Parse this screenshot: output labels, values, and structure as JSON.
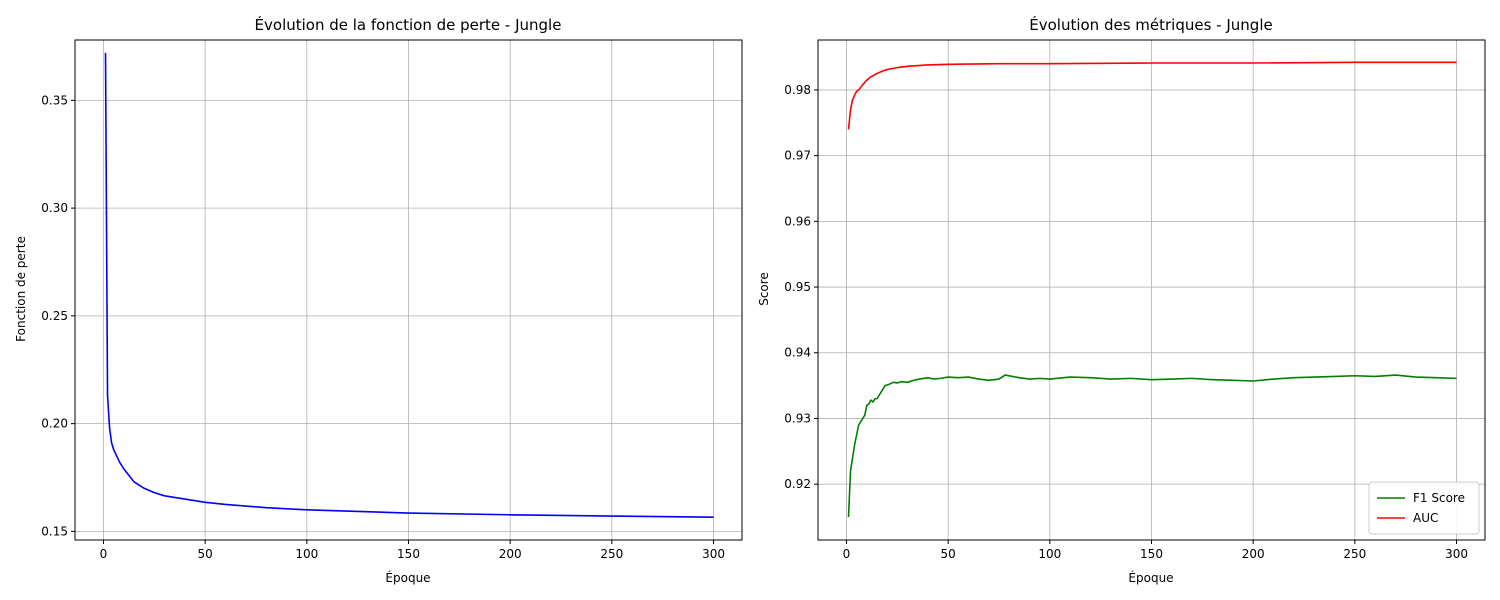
{
  "chart_data": [
    {
      "type": "line",
      "title": "Évolution de la fonction de perte - Jungle",
      "xlabel": "Époque",
      "ylabel": "Fonction de perte",
      "xlim": [
        -14,
        314
      ],
      "ylim": [
        0.146,
        0.378
      ],
      "xticks": [
        0,
        50,
        100,
        150,
        200,
        250,
        300
      ],
      "yticks": [
        0.15,
        0.2,
        0.25,
        0.3,
        0.35
      ],
      "grid": true,
      "legend": "none",
      "series": [
        {
          "name": "",
          "color": "#0000ff",
          "x": [
            1,
            2,
            3,
            4,
            5,
            6,
            8,
            10,
            15,
            20,
            25,
            30,
            40,
            50,
            60,
            80,
            100,
            150,
            200,
            250,
            300
          ],
          "y": [
            0.372,
            0.213,
            0.198,
            0.191,
            0.188,
            0.186,
            0.182,
            0.179,
            0.173,
            0.17,
            0.168,
            0.1665,
            0.165,
            0.1635,
            0.1625,
            0.161,
            0.16,
            0.1585,
            0.1577,
            0.1571,
            0.1566
          ]
        }
      ]
    },
    {
      "type": "line",
      "title": "Évolution des métriques - Jungle",
      "xlabel": "Époque",
      "ylabel": "Score",
      "xlim": [
        -14,
        314
      ],
      "ylim": [
        0.9115,
        0.9876
      ],
      "xticks": [
        0,
        50,
        100,
        150,
        200,
        250,
        300
      ],
      "yticks": [
        0.92,
        0.93,
        0.94,
        0.95,
        0.96,
        0.97,
        0.98
      ],
      "grid": true,
      "legend": "bottom-right",
      "series": [
        {
          "name": "F1 Score",
          "color": "#008000",
          "x": [
            1,
            2,
            3,
            4,
            5,
            6,
            7,
            8,
            9,
            10,
            11,
            12,
            13,
            14,
            15,
            17,
            19,
            21,
            23,
            25,
            27,
            30,
            33,
            36,
            40,
            43,
            46,
            50,
            55,
            60,
            65,
            70,
            75,
            78,
            85,
            90,
            95,
            100,
            110,
            120,
            130,
            140,
            150,
            160,
            170,
            180,
            190,
            200,
            210,
            220,
            230,
            240,
            250,
            260,
            270,
            280,
            290,
            300
          ],
          "y": [
            0.915,
            0.922,
            0.924,
            0.926,
            0.9275,
            0.929,
            0.9295,
            0.93,
            0.9305,
            0.932,
            0.9322,
            0.9328,
            0.9325,
            0.933,
            0.933,
            0.934,
            0.935,
            0.9352,
            0.9355,
            0.9354,
            0.9356,
            0.9355,
            0.9358,
            0.936,
            0.9362,
            0.936,
            0.9361,
            0.9363,
            0.9362,
            0.9363,
            0.936,
            0.9358,
            0.936,
            0.9366,
            0.9362,
            0.936,
            0.9361,
            0.936,
            0.9363,
            0.9362,
            0.936,
            0.9361,
            0.9359,
            0.936,
            0.9361,
            0.9359,
            0.9358,
            0.9357,
            0.936,
            0.9362,
            0.9363,
            0.9364,
            0.9365,
            0.9364,
            0.9366,
            0.9363,
            0.9362,
            0.9361
          ]
        },
        {
          "name": "AUC",
          "color": "#ff0000",
          "x": [
            1,
            2,
            3,
            4,
            5,
            6,
            8,
            10,
            12,
            15,
            18,
            20,
            25,
            30,
            40,
            50,
            75,
            100,
            150,
            200,
            250,
            300
          ],
          "y": [
            0.974,
            0.977,
            0.9785,
            0.9792,
            0.9798,
            0.98,
            0.9808,
            0.9815,
            0.982,
            0.9825,
            0.9829,
            0.9831,
            0.9834,
            0.9836,
            0.9838,
            0.9839,
            0.984,
            0.984,
            0.9841,
            0.9841,
            0.9842,
            0.9842
          ]
        }
      ]
    }
  ]
}
